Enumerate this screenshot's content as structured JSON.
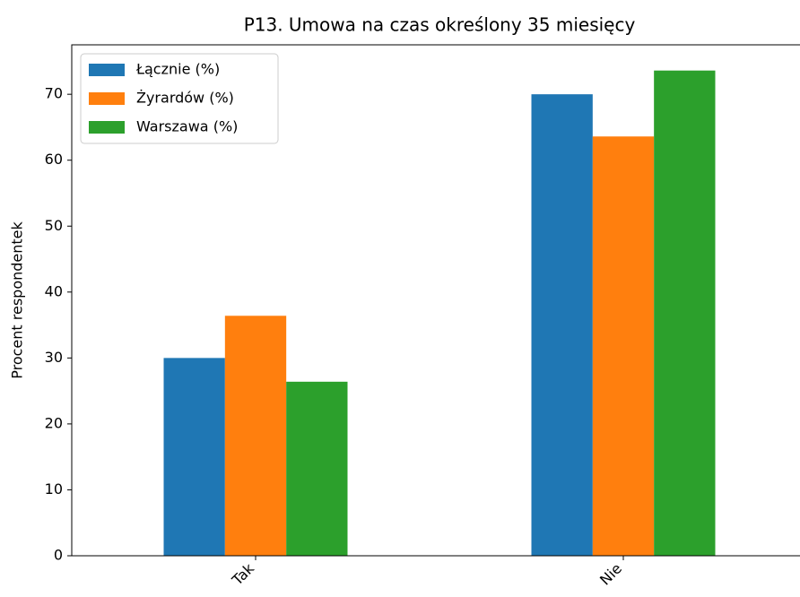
{
  "chart_data": {
    "type": "bar",
    "title": "P13. Umowa na czas określony 35 miesięcy",
    "ylabel": "Procent respondentek",
    "categories": [
      "Tak",
      "Nie"
    ],
    "series": [
      {
        "name": "Łącznie (%)",
        "color": "#1f77b4",
        "values": [
          30,
          70
        ]
      },
      {
        "name": "Żyrardów (%)",
        "color": "#ff7f0e",
        "values": [
          36.4,
          63.6
        ]
      },
      {
        "name": "Warszawa (%)",
        "color": "#2ca02c",
        "values": [
          26.4,
          73.6
        ]
      }
    ],
    "ylim": [
      0,
      77.5
    ],
    "yticks": [
      0,
      10,
      20,
      30,
      40,
      50,
      60,
      70
    ],
    "legend": "upper left"
  }
}
